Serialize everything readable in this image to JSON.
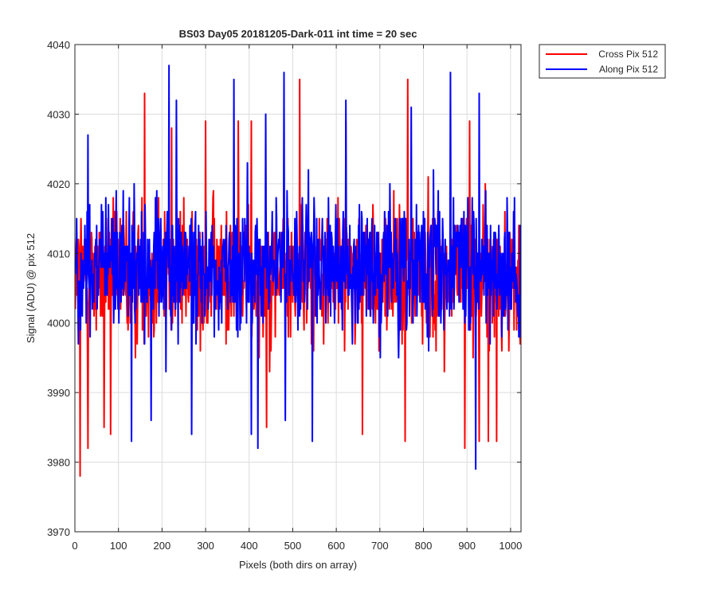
{
  "chart_data": {
    "type": "line",
    "title": "BS03 Day05 20181205-Dark-011 int time = 20 sec",
    "xlabel": "Pixels (both dirs on array)",
    "ylabel": "Signal (ADU) @ pix 512",
    "xlim": [
      0,
      1024
    ],
    "ylim": [
      3970,
      4040
    ],
    "x_ticks": [
      0,
      100,
      200,
      300,
      400,
      500,
      600,
      700,
      800,
      900,
      1000
    ],
    "y_ticks": [
      3970,
      3980,
      3990,
      4000,
      4010,
      4020,
      4030,
      4040
    ],
    "grid": true,
    "legend_position": "outside top-right",
    "x_range": [
      1,
      1024
    ],
    "series": [
      {
        "name": "Cross Pix 512",
        "color": "#ff0000",
        "mean": 4007,
        "noise_sd": 7.5,
        "peaks": [
          [
            160,
            4033
          ],
          [
            516,
            4035
          ],
          [
            764,
            4035
          ],
          [
            300,
            4029
          ],
          [
            375,
            4029
          ],
          [
            405,
            4029
          ],
          [
            622,
            4029
          ],
          [
            906,
            4029
          ],
          [
            968,
            4029
          ],
          [
            222,
            4028
          ]
        ],
        "troughs": [
          [
            12,
            3978
          ],
          [
            30,
            3982
          ],
          [
            67,
            3985
          ],
          [
            82,
            3984
          ],
          [
            440,
            3985
          ],
          [
            660,
            3984
          ],
          [
            758,
            3983
          ],
          [
            895,
            3982
          ],
          [
            928,
            3983
          ],
          [
            949,
            3983
          ],
          [
            968,
            3983
          ]
        ]
      },
      {
        "name": "Along Pix 512",
        "color": "#0000ff",
        "mean": 4008,
        "noise_sd": 7.5,
        "peaks": [
          [
            216,
            4037
          ],
          [
            365,
            4035
          ],
          [
            480,
            4036
          ],
          [
            862,
            4036
          ],
          [
            438,
            4030
          ],
          [
            622,
            4032
          ],
          [
            772,
            4031
          ],
          [
            928,
            4033
          ],
          [
            233,
            4032
          ],
          [
            30,
            4027
          ]
        ],
        "troughs": [
          [
            130,
            3983
          ],
          [
            175,
            3986
          ],
          [
            420,
            3982
          ],
          [
            405,
            3984
          ],
          [
            545,
            3983
          ],
          [
            920,
            3979
          ],
          [
            268,
            3984
          ],
          [
            483,
            3986
          ]
        ]
      }
    ]
  }
}
